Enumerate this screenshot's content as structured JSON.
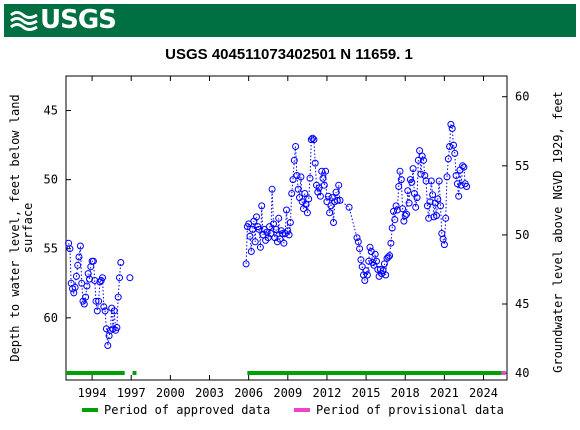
{
  "header": {
    "logo_text": "USGS",
    "background": "#006f41"
  },
  "chart_data": {
    "type": "scatter",
    "title": "USGS 404511073402501 N 11659. 1",
    "ylabel_left": "Depth to water level, feet below land surface",
    "ylabel_left_lines": [
      "Depth to water level, feet below land",
      "surface"
    ],
    "ylabel_right": "Groundwater level above NGVD 1929, feet",
    "y_left": {
      "range": [
        64.5,
        42.5
      ],
      "ticks": [
        45,
        50,
        55,
        60
      ],
      "inverted": true
    },
    "y_right": {
      "range": [
        39.5,
        61.5
      ],
      "ticks": [
        40,
        45,
        50,
        55,
        60
      ]
    },
    "x": {
      "range": [
        1992.0,
        2025.8
      ],
      "ticks": [
        1994,
        1997,
        2000,
        2003,
        2006,
        2009,
        2012,
        2015,
        2018,
        2021,
        2024
      ]
    },
    "grid": false,
    "series": [
      {
        "name": "Depth to water level",
        "color": "#0000ff",
        "marker": "open-circle",
        "line": "dotted",
        "segments": [
          [
            [
              1992.2,
              54.6
            ],
            [
              1992.3,
              55.0
            ],
            [
              1992.4,
              57.5
            ],
            [
              1992.5,
              57.9
            ],
            [
              1992.6,
              58.2
            ],
            [
              1992.7,
              57.8
            ],
            [
              1992.8,
              57.0
            ],
            [
              1992.9,
              56.2
            ],
            [
              1993.0,
              55.6
            ],
            [
              1993.1,
              54.8
            ],
            [
              1993.2,
              57.5
            ],
            [
              1993.3,
              58.8
            ],
            [
              1993.4,
              59.0
            ],
            [
              1993.5,
              58.5
            ],
            [
              1993.6,
              57.7
            ],
            [
              1993.7,
              56.8
            ],
            [
              1993.8,
              57.2
            ],
            [
              1993.9,
              56.3
            ],
            [
              1994.0,
              55.9
            ],
            [
              1994.1,
              55.9
            ],
            [
              1994.2,
              57.3
            ],
            [
              1994.3,
              58.8
            ],
            [
              1994.4,
              59.5
            ],
            [
              1994.5,
              58.8
            ],
            [
              1994.6,
              57.4
            ],
            [
              1994.7,
              57.3
            ],
            [
              1994.8,
              57.1
            ],
            [
              1994.9,
              59.2
            ],
            [
              1995.0,
              59.5
            ],
            [
              1995.1,
              60.8
            ],
            [
              1995.2,
              62.0
            ],
            [
              1995.3,
              61.3
            ],
            [
              1995.4,
              60.9
            ],
            [
              1995.5,
              59.3
            ],
            [
              1995.6,
              60.8
            ],
            [
              1995.7,
              59.5
            ],
            [
              1995.8,
              60.9
            ],
            [
              1995.9,
              60.7
            ],
            [
              1996.0,
              58.5
            ],
            [
              1996.1,
              57.1
            ],
            [
              1996.2,
              56.0
            ]
          ],
          [
            [
              1996.9,
              57.1
            ]
          ],
          [
            [
              2005.8,
              56.1
            ],
            [
              2005.9,
              53.4
            ],
            [
              2006.0,
              53.2
            ],
            [
              2006.1,
              54.1
            ],
            [
              2006.2,
              55.2
            ],
            [
              2006.3,
              53.6
            ],
            [
              2006.4,
              53.0
            ],
            [
              2006.5,
              54.5
            ],
            [
              2006.6,
              52.7
            ],
            [
              2006.7,
              53.4
            ],
            [
              2006.8,
              53.6
            ],
            [
              2006.9,
              54.9
            ],
            [
              2007.0,
              51.9
            ],
            [
              2007.1,
              54.0
            ],
            [
              2007.2,
              53.6
            ],
            [
              2007.3,
              54.4
            ],
            [
              2007.4,
              53.8
            ],
            [
              2007.5,
              54.2
            ],
            [
              2007.6,
              53.4
            ],
            [
              2007.7,
              53.9
            ],
            [
              2007.8,
              50.7
            ],
            [
              2007.9,
              53.2
            ],
            [
              2008.0,
              54.2
            ],
            [
              2008.1,
              53.6
            ],
            [
              2008.2,
              54.5
            ],
            [
              2008.3,
              52.8
            ],
            [
              2008.4,
              54.3
            ],
            [
              2008.5,
              53.7
            ],
            [
              2008.6,
              53.9
            ],
            [
              2008.7,
              54.6
            ],
            [
              2008.8,
              53.9
            ],
            [
              2008.9,
              52.2
            ],
            [
              2009.0,
              53.7
            ],
            [
              2009.1,
              54.0
            ],
            [
              2009.2,
              53.1
            ],
            [
              2009.3,
              51.0
            ],
            [
              2009.4,
              50.0
            ],
            [
              2009.5,
              48.6
            ],
            [
              2009.6,
              47.6
            ],
            [
              2009.7,
              49.7
            ],
            [
              2009.8,
              50.7
            ],
            [
              2009.9,
              51.3
            ],
            [
              2010.0,
              49.8
            ],
            [
              2010.1,
              51.6
            ],
            [
              2010.2,
              52.1
            ],
            [
              2010.3,
              51.0
            ],
            [
              2010.4,
              51.8
            ],
            [
              2010.5,
              52.4
            ],
            [
              2010.6,
              51.4
            ],
            [
              2010.7,
              49.9
            ],
            [
              2010.8,
              47.1
            ],
            [
              2010.9,
              47.0
            ],
            [
              2011.0,
              47.1
            ],
            [
              2011.1,
              48.8
            ],
            [
              2011.2,
              50.4
            ],
            [
              2011.3,
              50.9
            ],
            [
              2011.4,
              50.6
            ],
            [
              2011.5,
              51.2
            ],
            [
              2011.6,
              49.4
            ],
            [
              2011.7,
              49.9
            ],
            [
              2011.8,
              50.4
            ],
            [
              2011.9,
              49.4
            ],
            [
              2012.0,
              51.6
            ],
            [
              2012.1,
              51.2
            ],
            [
              2012.2,
              52.4
            ],
            [
              2012.3,
              51.9
            ],
            [
              2012.4,
              51.3
            ],
            [
              2012.5,
              53.1
            ],
            [
              2012.6,
              51.6
            ],
            [
              2012.7,
              50.9
            ],
            [
              2012.8,
              51.5
            ],
            [
              2012.9,
              50.4
            ],
            [
              2013.0,
              51.5
            ],
            [
              2013.7,
              52.0
            ],
            [
              2014.3,
              54.2
            ],
            [
              2014.4,
              54.5
            ],
            [
              2014.5,
              55.0
            ],
            [
              2014.6,
              55.8
            ],
            [
              2014.7,
              56.3
            ],
            [
              2014.8,
              56.9
            ],
            [
              2014.9,
              57.3
            ],
            [
              2015.0,
              56.6
            ],
            [
              2015.1,
              56.9
            ],
            [
              2015.2,
              55.9
            ],
            [
              2015.3,
              54.9
            ],
            [
              2015.4,
              55.2
            ],
            [
              2015.5,
              56.0
            ],
            [
              2015.6,
              56.2
            ],
            [
              2015.7,
              55.4
            ],
            [
              2015.8,
              55.9
            ],
            [
              2015.9,
              56.5
            ],
            [
              2016.0,
              57.0
            ],
            [
              2016.1,
              56.5
            ],
            [
              2016.2,
              56.8
            ],
            [
              2016.3,
              56.6
            ],
            [
              2016.4,
              56.1
            ],
            [
              2016.5,
              56.9
            ],
            [
              2016.6,
              55.7
            ],
            [
              2016.7,
              55.6
            ],
            [
              2016.8,
              55.5
            ],
            [
              2016.9,
              54.6
            ],
            [
              2017.0,
              53.5
            ],
            [
              2017.1,
              52.3
            ],
            [
              2017.2,
              52.9
            ],
            [
              2017.3,
              51.9
            ],
            [
              2017.4,
              52.2
            ],
            [
              2017.5,
              50.5
            ],
            [
              2017.6,
              49.4
            ],
            [
              2017.7,
              50.0
            ],
            [
              2017.8,
              52.1
            ],
            [
              2017.9,
              53.0
            ],
            [
              2018.0,
              52.6
            ],
            [
              2018.1,
              52.5
            ],
            [
              2018.2,
              50.8
            ],
            [
              2018.3,
              51.7
            ],
            [
              2018.4,
              50.0
            ],
            [
              2018.5,
              50.2
            ],
            [
              2018.6,
              49.2
            ],
            [
              2018.7,
              51.0
            ],
            [
              2018.8,
              52.0
            ],
            [
              2018.9,
              51.3
            ],
            [
              2019.0,
              48.6
            ],
            [
              2019.1,
              47.9
            ],
            [
              2019.2,
              49.6
            ],
            [
              2019.3,
              48.3
            ],
            [
              2019.4,
              48.6
            ],
            [
              2019.5,
              49.7
            ],
            [
              2019.6,
              50.1
            ],
            [
              2019.7,
              51.9
            ],
            [
              2019.8,
              52.8
            ],
            [
              2019.9,
              51.6
            ],
            [
              2020.0,
              50.1
            ],
            [
              2020.1,
              51.1
            ],
            [
              2020.2,
              52.7
            ],
            [
              2020.3,
              51.7
            ],
            [
              2020.4,
              52.6
            ],
            [
              2020.5,
              51.4
            ],
            [
              2020.6,
              50.1
            ],
            [
              2020.7,
              51.9
            ],
            [
              2020.8,
              53.9
            ],
            [
              2020.9,
              54.3
            ],
            [
              2021.0,
              54.7
            ],
            [
              2021.1,
              52.8
            ],
            [
              2021.2,
              49.8
            ],
            [
              2021.3,
              48.5
            ],
            [
              2021.4,
              47.6
            ],
            [
              2021.5,
              46.0
            ],
            [
              2021.6,
              46.3
            ],
            [
              2021.7,
              47.5
            ],
            [
              2021.8,
              48.1
            ],
            [
              2021.9,
              49.7
            ],
            [
              2022.0,
              50.3
            ],
            [
              2022.1,
              51.2
            ],
            [
              2022.2,
              49.3
            ],
            [
              2022.3,
              50.4
            ],
            [
              2022.4,
              49.0
            ],
            [
              2022.5,
              49.1
            ],
            [
              2022.6,
              50.3
            ],
            [
              2022.7,
              50.5
            ]
          ]
        ]
      }
    ],
    "approved_periods": [
      [
        1992.0,
        1996.5
      ],
      [
        1997.1,
        1997.4
      ],
      [
        2005.9,
        2025.4
      ]
    ],
    "provisional_periods": [
      [
        2025.4,
        2025.7
      ]
    ],
    "legend": [
      {
        "label": "Period of approved data",
        "color": "#00a000"
      },
      {
        "label": "Period of provisional data",
        "color": "#ee44cc"
      }
    ],
    "legend_placement": "bottom"
  }
}
